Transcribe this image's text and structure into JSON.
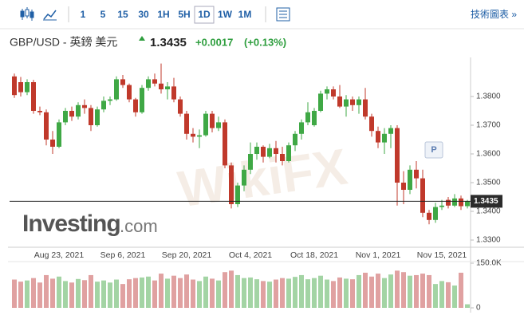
{
  "toolbar": {
    "intervals": [
      "1",
      "5",
      "15",
      "30",
      "1H",
      "5H",
      "1D",
      "1W",
      "1M"
    ],
    "link": "技術圖表 »"
  },
  "header": {
    "symbol": "GBP/USD - 英鎊 美元",
    "price": "1.3435",
    "change": "+0.0017",
    "change_pct": "(+0.13%)"
  },
  "watermarks": {
    "brand": "Investing",
    "brand_suffix": ".com",
    "wikifx": "WikiFX"
  },
  "chart_data": {
    "type": "candlestick",
    "categories": [
      null,
      null,
      null,
      null,
      null,
      null,
      null,
      "Aug 23, 2021",
      null,
      null,
      null,
      null,
      null,
      null,
      null,
      null,
      null,
      "Sep 6, 2021",
      null,
      null,
      null,
      null,
      null,
      null,
      null,
      null,
      null,
      "Sep 20, 2021",
      null,
      null,
      null,
      null,
      null,
      null,
      null,
      null,
      null,
      "Oct 4, 2021",
      null,
      null,
      null,
      null,
      null,
      null,
      null,
      null,
      null,
      "Oct 18, 2021",
      null,
      null,
      null,
      null,
      null,
      null,
      null,
      null,
      null,
      "Nov 1, 2021",
      null,
      null,
      null,
      null,
      null,
      null,
      null,
      null,
      null,
      "Nov 15, 2021",
      null,
      null,
      null,
      null
    ],
    "open": [
      1.387,
      1.385,
      1.3815,
      1.385,
      1.375,
      1.3745,
      1.365,
      1.3625,
      1.371,
      1.375,
      1.373,
      1.377,
      1.376,
      1.37,
      1.3755,
      1.3785,
      1.379,
      1.386,
      1.384,
      1.379,
      1.3745,
      1.383,
      1.386,
      1.3845,
      1.3825,
      1.3835,
      1.379,
      1.374,
      1.367,
      1.366,
      1.3665,
      1.374,
      1.369,
      1.371,
      1.356,
      1.3425,
      1.349,
      1.3545,
      1.36,
      1.3625,
      1.359,
      1.362,
      1.36,
      1.3575,
      1.363,
      1.367,
      1.371,
      1.37,
      1.375,
      1.381,
      1.3825,
      1.38,
      1.3765,
      1.379,
      1.377,
      1.379,
      1.373,
      1.368,
      1.364,
      1.367,
      1.369,
      1.35,
      1.3475,
      1.3545,
      1.3515,
      1.3395,
      1.337,
      1.3415,
      1.344,
      1.342,
      1.3445,
      1.3418
    ],
    "high": [
      1.388,
      1.3868,
      1.386,
      1.3858,
      1.3765,
      1.3755,
      1.368,
      1.372,
      1.376,
      1.3765,
      1.378,
      1.379,
      1.377,
      1.3765,
      1.38,
      1.38,
      1.387,
      1.3875,
      1.3845,
      1.3795,
      1.384,
      1.387,
      1.388,
      1.3915,
      1.385,
      1.3865,
      1.38,
      1.375,
      1.369,
      1.3685,
      1.375,
      1.375,
      1.373,
      1.372,
      1.357,
      1.35,
      1.356,
      1.364,
      1.364,
      1.363,
      1.3635,
      1.3645,
      1.3625,
      1.364,
      1.368,
      1.372,
      1.378,
      1.376,
      1.382,
      1.3835,
      1.3835,
      1.384,
      1.3805,
      1.38,
      1.38,
      1.383,
      1.374,
      1.3695,
      1.369,
      1.37,
      1.37,
      1.354,
      1.356,
      1.3575,
      1.3545,
      1.3405,
      1.343,
      1.344,
      1.345,
      1.346,
      1.3455,
      1.344
    ],
    "low": [
      1.3795,
      1.38,
      1.3805,
      1.374,
      1.3735,
      1.363,
      1.36,
      1.362,
      1.37,
      1.3715,
      1.372,
      1.374,
      1.368,
      1.3695,
      1.3745,
      1.377,
      1.3785,
      1.383,
      1.378,
      1.373,
      1.374,
      1.382,
      1.3835,
      1.381,
      1.379,
      1.378,
      1.373,
      1.365,
      1.364,
      1.362,
      1.366,
      1.3675,
      1.368,
      1.355,
      1.341,
      1.3415,
      1.347,
      1.353,
      1.358,
      1.357,
      1.3585,
      1.357,
      1.356,
      1.357,
      1.361,
      1.365,
      1.37,
      1.3695,
      1.3745,
      1.379,
      1.379,
      1.376,
      1.373,
      1.375,
      1.374,
      1.372,
      1.366,
      1.362,
      1.36,
      1.362,
      1.342,
      1.3425,
      1.346,
      1.348,
      1.338,
      1.3355,
      1.336,
      1.3405,
      1.341,
      1.3415,
      1.3405,
      1.341
    ],
    "close": [
      1.3805,
      1.3815,
      1.385,
      1.375,
      1.3745,
      1.365,
      1.3625,
      1.371,
      1.375,
      1.373,
      1.377,
      1.376,
      1.37,
      1.3755,
      1.3785,
      1.379,
      1.386,
      1.384,
      1.379,
      1.3745,
      1.383,
      1.386,
      1.3845,
      1.3825,
      1.3835,
      1.379,
      1.374,
      1.367,
      1.366,
      1.3665,
      1.374,
      1.369,
      1.371,
      1.356,
      1.3425,
      1.349,
      1.3545,
      1.36,
      1.3625,
      1.359,
      1.362,
      1.36,
      1.3575,
      1.363,
      1.367,
      1.371,
      1.3745,
      1.375,
      1.381,
      1.3825,
      1.38,
      1.3765,
      1.379,
      1.377,
      1.379,
      1.373,
      1.368,
      1.364,
      1.367,
      1.369,
      1.35,
      1.3475,
      1.3545,
      1.3515,
      1.3395,
      1.337,
      1.3415,
      1.342,
      1.342,
      1.3445,
      1.3418,
      1.3435
    ],
    "volume": [
      95000,
      88000,
      92000,
      100000,
      85000,
      110000,
      98000,
      105000,
      90000,
      85000,
      97000,
      93000,
      110000,
      88000,
      92000,
      85000,
      95000,
      80000,
      96000,
      100000,
      102000,
      105000,
      92000,
      115000,
      98000,
      108000,
      100000,
      112000,
      95000,
      90000,
      105000,
      98000,
      92000,
      120000,
      125000,
      110000,
      100000,
      102000,
      96000,
      90000,
      88000,
      95000,
      100000,
      98000,
      104000,
      110000,
      96000,
      100000,
      108000,
      95000,
      90000,
      102000,
      98000,
      96000,
      110000,
      118000,
      105000,
      115000,
      100000,
      112000,
      125000,
      120000,
      108000,
      110000,
      115000,
      110000,
      80000,
      90000,
      86000,
      75000,
      118000,
      12000
    ],
    "ylim": [
      1.3275,
      1.39
    ],
    "yticks": [
      {
        "value": 1.33,
        "label": "1.3300"
      },
      {
        "value": 1.34,
        "label": "1.3400"
      },
      {
        "value": 1.35,
        "label": "1.3500"
      },
      {
        "value": 1.36,
        "label": "1.3600"
      },
      {
        "value": 1.37,
        "label": "1.3700"
      },
      {
        "value": 1.38,
        "label": "1.3800"
      }
    ],
    "y2lim": [
      0,
      150000
    ],
    "y2ticks": [
      0,
      {
        "value": 150000,
        "label": "150.0K"
      }
    ],
    "last_price": 1.3435,
    "marker_label": "P",
    "up_color": "#3fa845",
    "down_color": "#c0392b",
    "volume_up_color": "#a3d4a4",
    "volume_down_color": "#e0a1a1"
  }
}
